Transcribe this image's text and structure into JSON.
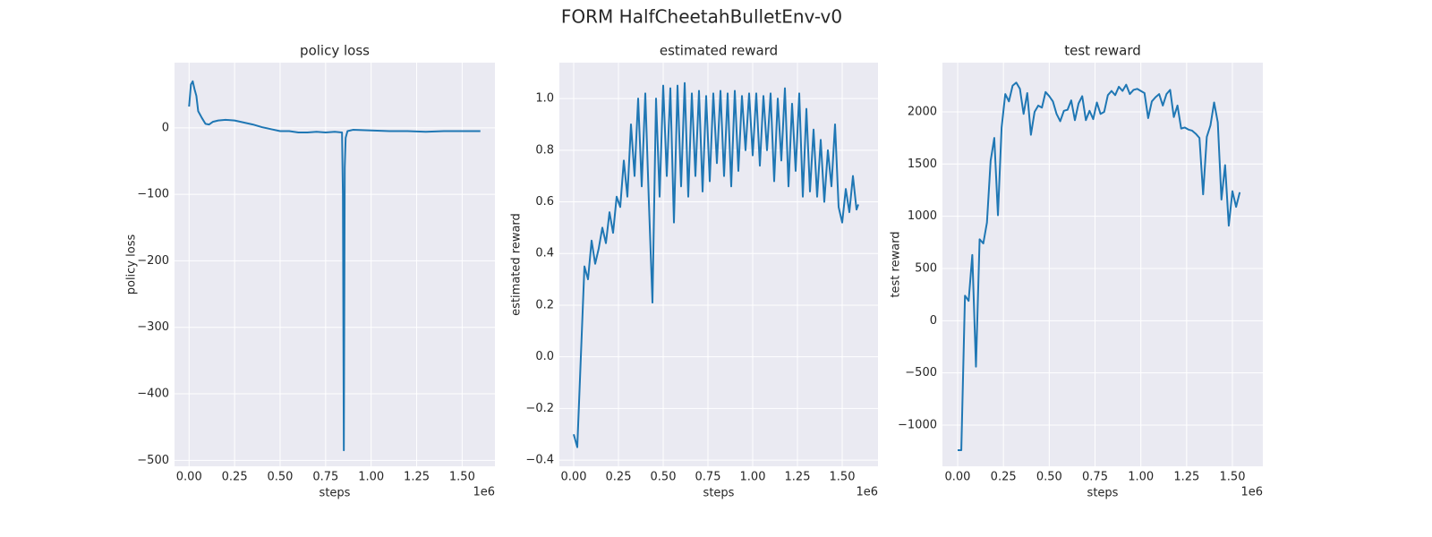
{
  "title": "FORM HalfCheetahBulletEnv-v0",
  "chart_data": [
    {
      "type": "line",
      "title": "policy loss",
      "xlabel": "steps",
      "ylabel": "policy loss",
      "x_offset_label": "1e6",
      "color": "#1f77b4",
      "grid": true,
      "x": [
        0,
        0.01,
        0.02,
        0.03,
        0.04,
        0.05,
        0.07,
        0.09,
        0.11,
        0.13,
        0.16,
        0.2,
        0.25,
        0.3,
        0.35,
        0.4,
        0.45,
        0.5,
        0.55,
        0.6,
        0.65,
        0.7,
        0.75,
        0.8,
        0.84,
        0.845,
        0.85,
        0.855,
        0.86,
        0.87,
        0.9,
        1.0,
        1.1,
        1.2,
        1.3,
        1.4,
        1.5,
        1.6
      ],
      "values": [
        32,
        65,
        70,
        58,
        48,
        25,
        15,
        6,
        5,
        9,
        11,
        12,
        11,
        8,
        5,
        1,
        -2,
        -5,
        -5,
        -7,
        -7,
        -6,
        -7,
        -6,
        -7,
        -100,
        -485,
        -60,
        -15,
        -5,
        -3,
        -4,
        -5,
        -5,
        -6,
        -5,
        -5,
        -5
      ],
      "xlim": [
        -0.08,
        1.68
      ],
      "ylim": [
        -509,
        98
      ],
      "xticks": [
        {
          "value": 0,
          "label": "0.00"
        },
        {
          "value": 0.25,
          "label": "0.25"
        },
        {
          "value": 0.5,
          "label": "0.50"
        },
        {
          "value": 0.75,
          "label": "0.75"
        },
        {
          "value": 1,
          "label": "1.00"
        },
        {
          "value": 1.25,
          "label": "1.25"
        },
        {
          "value": 1.5,
          "label": "1.50"
        }
      ],
      "yticks": [
        {
          "value": -500,
          "label": "−500"
        },
        {
          "value": -400,
          "label": "−400"
        },
        {
          "value": -300,
          "label": "−300"
        },
        {
          "value": -200,
          "label": "−200"
        },
        {
          "value": -100,
          "label": "−100"
        },
        0
      ]
    },
    {
      "type": "line",
      "title": "estimated reward",
      "xlabel": "steps",
      "ylabel": "estimated reward",
      "x_offset_label": "1e6",
      "color": "#1f77b4",
      "grid": true,
      "x": [
        0,
        0.02,
        0.04,
        0.06,
        0.08,
        0.1,
        0.12,
        0.14,
        0.16,
        0.18,
        0.2,
        0.22,
        0.24,
        0.26,
        0.28,
        0.3,
        0.32,
        0.34,
        0.36,
        0.38,
        0.4,
        0.42,
        0.44,
        0.46,
        0.48,
        0.5,
        0.52,
        0.54,
        0.56,
        0.58,
        0.6,
        0.62,
        0.64,
        0.66,
        0.68,
        0.7,
        0.72,
        0.74,
        0.76,
        0.78,
        0.8,
        0.82,
        0.84,
        0.86,
        0.88,
        0.9,
        0.92,
        0.94,
        0.96,
        0.98,
        1.0,
        1.02,
        1.04,
        1.06,
        1.08,
        1.1,
        1.12,
        1.14,
        1.16,
        1.18,
        1.2,
        1.22,
        1.24,
        1.26,
        1.28,
        1.3,
        1.32,
        1.34,
        1.36,
        1.38,
        1.4,
        1.42,
        1.44,
        1.46,
        1.48,
        1.5,
        1.52,
        1.54,
        1.56,
        1.58,
        1.59
      ],
      "values": [
        -0.3,
        -0.35,
        0.0,
        0.35,
        0.3,
        0.45,
        0.36,
        0.42,
        0.5,
        0.44,
        0.56,
        0.48,
        0.62,
        0.58,
        0.76,
        0.62,
        0.9,
        0.7,
        1.0,
        0.66,
        1.02,
        0.6,
        0.21,
        1.0,
        0.62,
        1.05,
        0.7,
        1.04,
        0.52,
        1.05,
        0.66,
        1.06,
        0.62,
        1.02,
        0.7,
        1.03,
        0.64,
        1.01,
        0.68,
        1.02,
        0.75,
        1.03,
        0.7,
        1.02,
        0.66,
        1.03,
        0.72,
        1.01,
        0.8,
        1.02,
        0.78,
        1.02,
        0.74,
        1.01,
        0.8,
        1.02,
        0.68,
        1.0,
        0.76,
        1.04,
        0.66,
        0.98,
        0.72,
        1.02,
        0.62,
        0.96,
        0.64,
        0.88,
        0.62,
        0.84,
        0.6,
        0.8,
        0.66,
        0.9,
        0.58,
        0.52,
        0.65,
        0.56,
        0.7,
        0.57,
        0.59
      ],
      "xlim": [
        -0.08,
        1.7
      ],
      "ylim": [
        -0.424,
        1.139
      ],
      "xticks": [
        {
          "value": 0,
          "label": "0.00"
        },
        {
          "value": 0.25,
          "label": "0.25"
        },
        {
          "value": 0.5,
          "label": "0.50"
        },
        {
          "value": 0.75,
          "label": "0.75"
        },
        {
          "value": 1,
          "label": "1.00"
        },
        {
          "value": 1.25,
          "label": "1.25"
        },
        {
          "value": 1.5,
          "label": "1.50"
        }
      ],
      "yticks": [
        {
          "value": -0.4,
          "label": "−0.4"
        },
        {
          "value": -0.2,
          "label": "−0.2"
        },
        {
          "value": 0,
          "label": "0.0"
        },
        0.2,
        0.4,
        0.6,
        0.8,
        {
          "value": 1,
          "label": "1.0"
        }
      ]
    },
    {
      "type": "line",
      "title": "test reward",
      "xlabel": "steps",
      "ylabel": "test reward",
      "x_offset_label": "1e6",
      "color": "#1f77b4",
      "grid": true,
      "x": [
        0,
        0.02,
        0.04,
        0.06,
        0.08,
        0.1,
        0.12,
        0.14,
        0.16,
        0.18,
        0.2,
        0.22,
        0.24,
        0.26,
        0.28,
        0.3,
        0.32,
        0.34,
        0.36,
        0.38,
        0.4,
        0.42,
        0.44,
        0.46,
        0.48,
        0.5,
        0.52,
        0.54,
        0.56,
        0.58,
        0.6,
        0.62,
        0.64,
        0.66,
        0.68,
        0.7,
        0.72,
        0.74,
        0.76,
        0.78,
        0.8,
        0.82,
        0.84,
        0.86,
        0.88,
        0.9,
        0.92,
        0.94,
        0.96,
        0.98,
        1.0,
        1.02,
        1.04,
        1.06,
        1.08,
        1.1,
        1.12,
        1.14,
        1.16,
        1.18,
        1.2,
        1.22,
        1.24,
        1.26,
        1.28,
        1.3,
        1.32,
        1.34,
        1.36,
        1.38,
        1.4,
        1.42,
        1.44,
        1.46,
        1.48,
        1.5,
        1.52,
        1.54
      ],
      "values": [
        -1240,
        -1240,
        240,
        190,
        630,
        -440,
        780,
        740,
        940,
        1530,
        1750,
        1010,
        1850,
        2170,
        2100,
        2250,
        2280,
        2220,
        1980,
        2180,
        1780,
        2000,
        2060,
        2040,
        2190,
        2150,
        2100,
        1980,
        1910,
        2010,
        2020,
        2110,
        1920,
        2080,
        2150,
        1920,
        2010,
        1930,
        2090,
        1980,
        2000,
        2160,
        2200,
        2160,
        2240,
        2200,
        2260,
        2170,
        2210,
        2220,
        2200,
        2180,
        1940,
        2100,
        2140,
        2170,
        2060,
        2170,
        2210,
        1950,
        2060,
        1840,
        1850,
        1830,
        1820,
        1790,
        1750,
        1210,
        1760,
        1870,
        2090,
        1900,
        1160,
        1490,
        910,
        1240,
        1090,
        1230
      ],
      "xlim": [
        -0.083,
        1.666
      ],
      "ylim": [
        -1394,
        2471
      ],
      "xticks": [
        {
          "value": 0,
          "label": "0.00"
        },
        {
          "value": 0.25,
          "label": "0.25"
        },
        {
          "value": 0.5,
          "label": "0.50"
        },
        {
          "value": 0.75,
          "label": "0.75"
        },
        {
          "value": 1,
          "label": "1.00"
        },
        {
          "value": 1.25,
          "label": "1.25"
        },
        {
          "value": 1.5,
          "label": "1.50"
        }
      ],
      "yticks": [
        {
          "value": -1000,
          "label": "−1000"
        },
        {
          "value": -500,
          "label": "−500"
        },
        0,
        500,
        1000,
        1500,
        2000
      ]
    }
  ]
}
